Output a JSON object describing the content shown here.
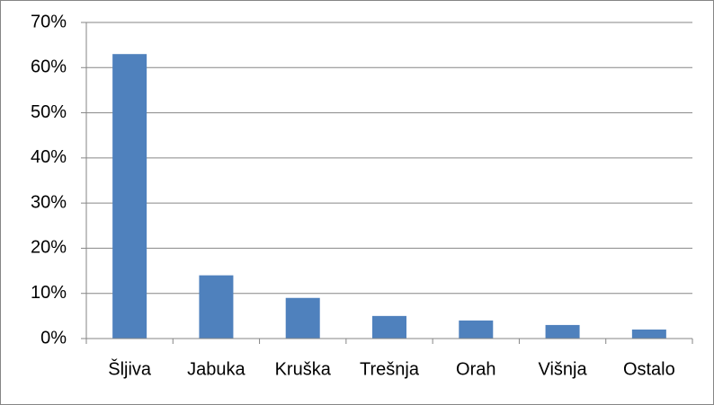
{
  "chart_data": {
    "type": "bar",
    "categories": [
      "Šljiva",
      "Jabuka",
      "Kruška",
      "Trešnja",
      "Orah",
      "Višnja",
      "Ostalo"
    ],
    "values": [
      63,
      14,
      9,
      5,
      4,
      3,
      2
    ],
    "color": "#4f81bd",
    "ylim": [
      0,
      70
    ],
    "yticks": [
      {
        "value": 0,
        "label": "0%"
      },
      {
        "value": 10,
        "label": "10%"
      },
      {
        "value": 20,
        "label": "20%"
      },
      {
        "value": 30,
        "label": "30%"
      },
      {
        "value": 40,
        "label": "40%"
      },
      {
        "value": 50,
        "label": "50%"
      },
      {
        "value": 60,
        "label": "60%"
      },
      {
        "value": 70,
        "label": "70%"
      }
    ],
    "grid": true
  }
}
